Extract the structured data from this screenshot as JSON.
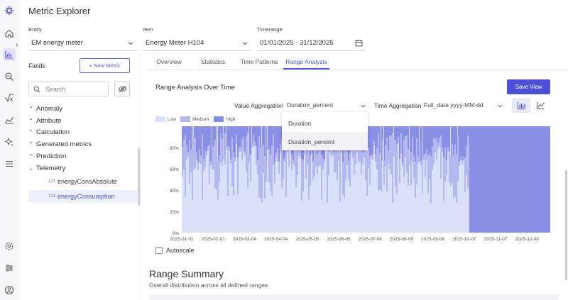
{
  "app": {
    "title": "Metric Explorer"
  },
  "filters": {
    "entity": {
      "label": "Entity",
      "value": "EM energy meter"
    },
    "item": {
      "label": "Item",
      "value": "Energy Meter H104"
    },
    "timerange": {
      "label": "Timerange",
      "value": "01/01/2025 - 31/12/2025"
    }
  },
  "fields": {
    "label": "Fields",
    "new_metric": "+ New Metric",
    "search_placeholder": "Search",
    "groups": [
      {
        "label": "Anomaly",
        "expanded": false
      },
      {
        "label": "Attribute",
        "expanded": false
      },
      {
        "label": "Calculation",
        "expanded": false
      },
      {
        "label": "Generated metrics",
        "expanded": false
      },
      {
        "label": "Prediction",
        "expanded": false
      },
      {
        "label": "Telemetry",
        "expanded": true
      }
    ],
    "leaves": [
      {
        "type": "123",
        "label": "energyConsAbsolute",
        "selected": false
      },
      {
        "type": "123",
        "label": "energyConsumption",
        "selected": true
      }
    ]
  },
  "tabs": [
    {
      "label": "Overview",
      "active": false
    },
    {
      "label": "Statistics",
      "active": false
    },
    {
      "label": "Time Patterns",
      "active": false
    },
    {
      "label": "Range Analysis",
      "active": true
    }
  ],
  "panel": {
    "title": "Range Analysis Over Time",
    "save_view": "Save View",
    "value_aggregation": {
      "label": "Value Aggregation",
      "value": "Duration_percent"
    },
    "time_aggregation": {
      "label": "Time Aggregation",
      "value": "Full_date yyyy-MM-dd"
    },
    "dropdown_options": [
      {
        "label": "Duration",
        "selected": false
      },
      {
        "label": "Duration_percent",
        "selected": true
      }
    ],
    "chart_type_buttons": [
      {
        "icon": "bar-chart-icon",
        "active": true
      },
      {
        "icon": "line-chart-icon",
        "active": false
      }
    ],
    "autoscale_label": "Autoscale",
    "autoscale_checked": false
  },
  "summary": {
    "title": "Range Summary",
    "subtitle": "Overall distribution across all defined ranges"
  },
  "colors": {
    "accent": "#4b50d6",
    "low": "#dcdff8",
    "medium": "#b4b8ef",
    "high": "#8a8fe6"
  },
  "chart_data": {
    "type": "bar",
    "stacked": true,
    "series": [
      {
        "name": "Low",
        "color": "#dcdff8"
      },
      {
        "name": "Medium",
        "color": "#b4b8ef"
      },
      {
        "name": "High",
        "color": "#8a8fe6"
      }
    ],
    "x_ticks": [
      "2025-01-01",
      "2025-02-01",
      "2025-03-04",
      "2025-04-04",
      "2025-05-05",
      "2025-06-05",
      "2025-07-06",
      "2025-08-06",
      "2025-09-06",
      "2025-10-07",
      "2025-11-07",
      "2025-12-08"
    ],
    "y_ticks": [
      "0%",
      "20%",
      "40%",
      "60%",
      "80%"
    ],
    "ylim": [
      0,
      100
    ],
    "xlim": [
      "2025-01-01",
      "2025-12-31"
    ],
    "data_end": "2025-10-12",
    "legend_position": "top-left",
    "grid": false
  }
}
